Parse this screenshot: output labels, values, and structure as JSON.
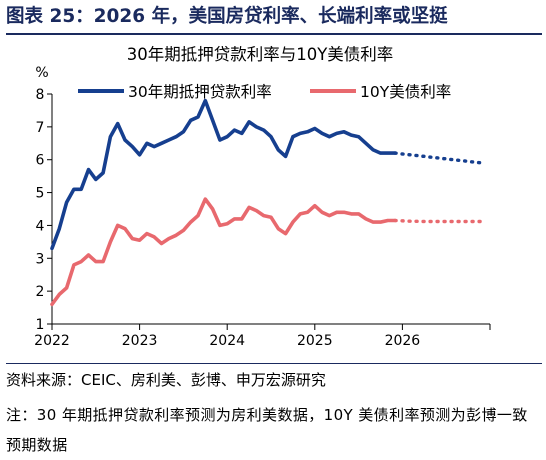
{
  "figure": {
    "title": "图表 25：2026 年，美国房贷利率、长端利率或坚挺",
    "source": "资料来源：CEIC、房利美、彭博、申万宏源研究",
    "note": "注：30 年期抵押贷款利率预测为房利美数据，10Y 美债利率预测为彭博一致预期数据"
  },
  "colors": {
    "title": "#1a2a5e",
    "mortgage": "#163f8f",
    "treasury": "#e8696e"
  },
  "chart_data": {
    "type": "line",
    "title": "30年期抵押贷款利率与10Y美债利率",
    "ylabel": "%",
    "ylim": [
      1,
      8
    ],
    "yticks": [
      "1",
      "2",
      "3",
      "4",
      "5",
      "6",
      "7",
      "8"
    ],
    "xlim": [
      2022.0,
      2027.0
    ],
    "xticks": [
      {
        "value": 2022,
        "label": "2022"
      },
      {
        "value": 2023,
        "label": "2023"
      },
      {
        "value": 2024,
        "label": "2024"
      },
      {
        "value": 2025,
        "label": "2025"
      },
      {
        "value": 2026,
        "label": "2026"
      }
    ],
    "legend_position": "top",
    "series": [
      {
        "name": "30年期抵押贷款利率",
        "color": "#163f8f",
        "x": [
          2022.0,
          2022.083,
          2022.167,
          2022.25,
          2022.333,
          2022.417,
          2022.5,
          2022.583,
          2022.667,
          2022.75,
          2022.833,
          2022.917,
          2023.0,
          2023.083,
          2023.167,
          2023.25,
          2023.333,
          2023.417,
          2023.5,
          2023.583,
          2023.667,
          2023.75,
          2023.833,
          2023.917,
          2024.0,
          2024.083,
          2024.167,
          2024.25,
          2024.333,
          2024.417,
          2024.5,
          2024.583,
          2024.667,
          2024.75,
          2024.833,
          2024.917,
          2025.0,
          2025.083,
          2025.167,
          2025.25,
          2025.333,
          2025.417,
          2025.5,
          2025.583,
          2025.667,
          2025.75,
          2025.833,
          2025.917
        ],
        "values": [
          3.3,
          3.9,
          4.7,
          5.1,
          5.1,
          5.7,
          5.4,
          5.6,
          6.7,
          7.1,
          6.6,
          6.4,
          6.15,
          6.5,
          6.4,
          6.5,
          6.6,
          6.7,
          6.85,
          7.2,
          7.3,
          7.8,
          7.2,
          6.6,
          6.7,
          6.9,
          6.8,
          7.15,
          7.0,
          6.9,
          6.7,
          6.3,
          6.1,
          6.7,
          6.8,
          6.85,
          6.95,
          6.8,
          6.7,
          6.8,
          6.85,
          6.75,
          6.7,
          6.5,
          6.3,
          6.2,
          6.2,
          6.2
        ]
      },
      {
        "name": "10Y美债利率",
        "color": "#e8696e",
        "x": [
          2022.0,
          2022.083,
          2022.167,
          2022.25,
          2022.333,
          2022.417,
          2022.5,
          2022.583,
          2022.667,
          2022.75,
          2022.833,
          2022.917,
          2023.0,
          2023.083,
          2023.167,
          2023.25,
          2023.333,
          2023.417,
          2023.5,
          2023.583,
          2023.667,
          2023.75,
          2023.833,
          2023.917,
          2024.0,
          2024.083,
          2024.167,
          2024.25,
          2024.333,
          2024.417,
          2024.5,
          2024.583,
          2024.667,
          2024.75,
          2024.833,
          2024.917,
          2025.0,
          2025.083,
          2025.167,
          2025.25,
          2025.333,
          2025.417,
          2025.5,
          2025.583,
          2025.667,
          2025.75,
          2025.833,
          2025.917
        ],
        "values": [
          1.6,
          1.9,
          2.1,
          2.8,
          2.9,
          3.1,
          2.9,
          2.9,
          3.5,
          4.0,
          3.9,
          3.6,
          3.55,
          3.75,
          3.65,
          3.45,
          3.6,
          3.7,
          3.85,
          4.1,
          4.3,
          4.8,
          4.5,
          4.0,
          4.05,
          4.2,
          4.2,
          4.55,
          4.45,
          4.3,
          4.25,
          3.9,
          3.75,
          4.1,
          4.35,
          4.4,
          4.6,
          4.4,
          4.3,
          4.4,
          4.4,
          4.35,
          4.35,
          4.2,
          4.1,
          4.1,
          4.15,
          4.15
        ]
      }
    ],
    "forecast": [
      {
        "series": "30年期抵押贷款利率",
        "color": "#163f8f",
        "x": [
          2025.917,
          2026.083,
          2026.25,
          2026.417,
          2026.583,
          2026.75,
          2026.917
        ],
        "values": [
          6.2,
          6.15,
          6.1,
          6.05,
          6.0,
          5.95,
          5.9
        ]
      },
      {
        "series": "10Y美债利率",
        "color": "#e8696e",
        "x": [
          2025.917,
          2026.083,
          2026.25,
          2026.417,
          2026.583,
          2026.75,
          2026.917
        ],
        "values": [
          4.15,
          4.13,
          4.12,
          4.12,
          4.12,
          4.12,
          4.12
        ]
      }
    ]
  }
}
